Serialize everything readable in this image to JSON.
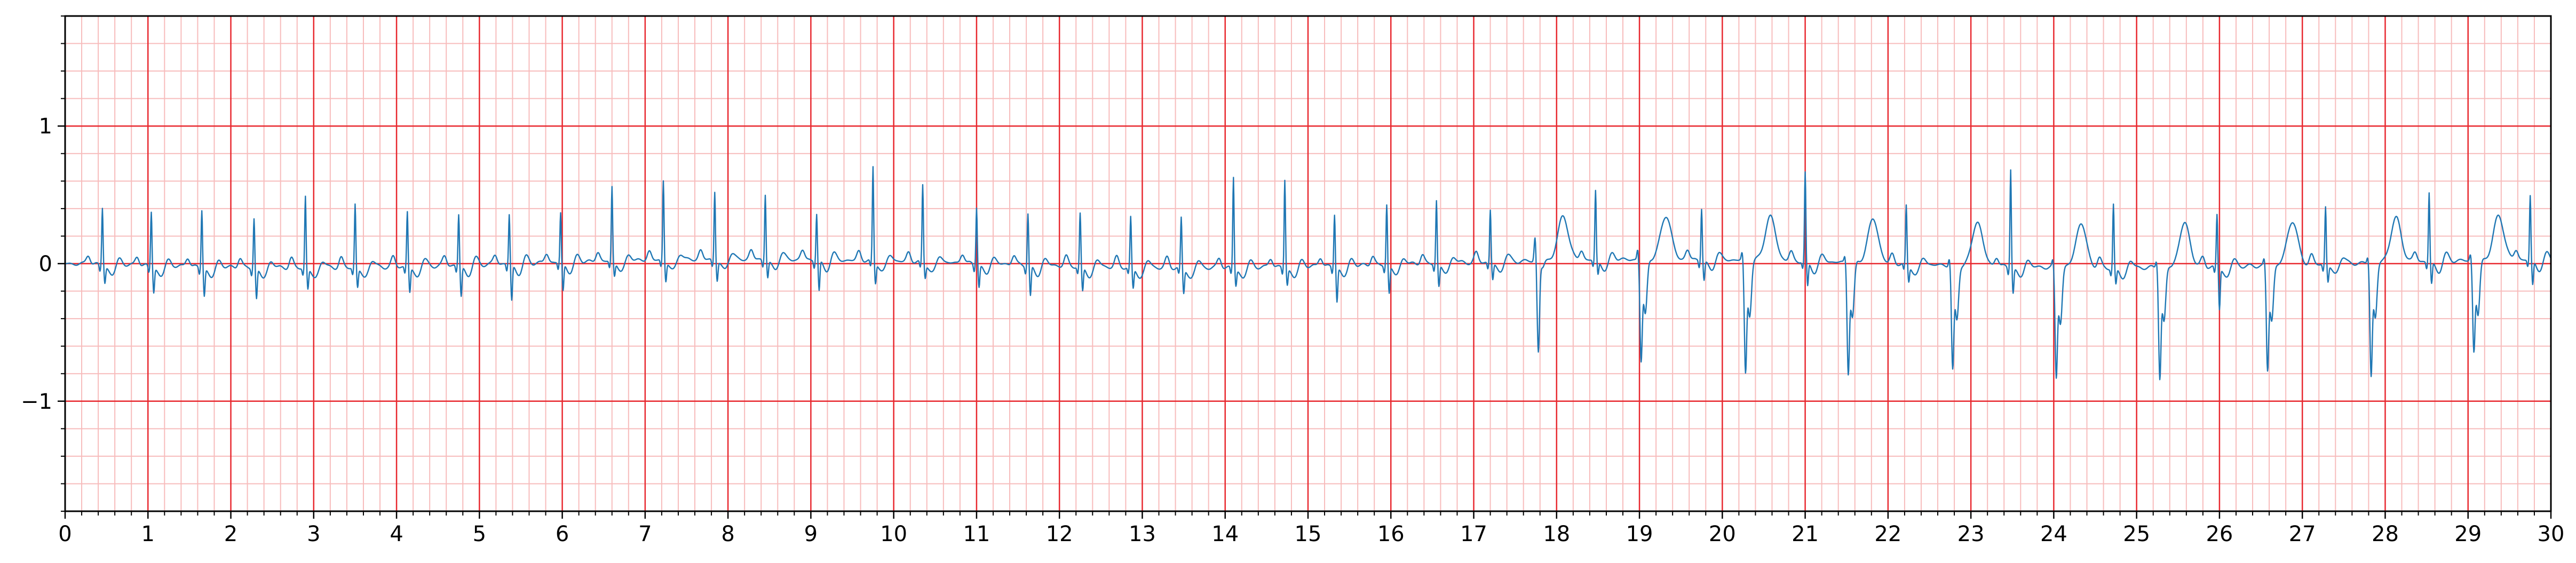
{
  "chart_data": {
    "type": "line",
    "title": "",
    "xlabel": "",
    "ylabel": "",
    "xlim": [
      0,
      30
    ],
    "ylim": [
      -1.8,
      1.8
    ],
    "x_ticks": [
      0,
      1,
      2,
      3,
      4,
      5,
      6,
      7,
      8,
      9,
      10,
      11,
      12,
      13,
      14,
      15,
      16,
      17,
      18,
      19,
      20,
      21,
      22,
      23,
      24,
      25,
      26,
      27,
      28,
      29,
      30
    ],
    "x_tick_labels": [
      "0",
      "1",
      "2",
      "3",
      "4",
      "5",
      "6",
      "7",
      "8",
      "9",
      "10",
      "11",
      "12",
      "13",
      "14",
      "15",
      "16",
      "17",
      "18",
      "19",
      "20",
      "21",
      "22",
      "23",
      "24",
      "25",
      "26",
      "27",
      "28",
      "29",
      "30"
    ],
    "y_ticks": [
      -1,
      0,
      1
    ],
    "y_tick_labels": [
      "−1",
      "0",
      "1"
    ],
    "grid": {
      "major_x_step": 1,
      "major_y_step": 1,
      "minor_x_step": 0.2,
      "minor_y_step": 0.2
    },
    "colors": {
      "trace": "#1f77b4",
      "major_grid": "#e8282f",
      "minor_grid": "#f7bcbc",
      "axes": "#000000"
    },
    "series": [
      {
        "name": "",
        "beats": [
          {
            "t": 0.45,
            "r": 0.42,
            "s": -0.12,
            "q": -0.05
          },
          {
            "t": 1.04,
            "r": 0.4,
            "s": -0.18,
            "q": -0.05
          },
          {
            "t": 1.65,
            "r": 0.42,
            "s": -0.2,
            "q": -0.05
          },
          {
            "t": 2.28,
            "r": 0.36,
            "s": -0.22,
            "q": -0.05
          },
          {
            "t": 2.9,
            "r": 0.52,
            "s": -0.15,
            "q": -0.05
          },
          {
            "t": 3.5,
            "r": 0.46,
            "s": -0.14,
            "q": -0.05
          },
          {
            "t": 4.13,
            "r": 0.4,
            "s": -0.18,
            "q": -0.05
          },
          {
            "t": 4.75,
            "r": 0.37,
            "s": -0.22,
            "q": -0.05
          },
          {
            "t": 5.36,
            "r": 0.36,
            "s": -0.26,
            "q": -0.05
          },
          {
            "t": 5.98,
            "r": 0.36,
            "s": -0.2,
            "q": -0.05
          },
          {
            "t": 6.6,
            "r": 0.54,
            "s": -0.1,
            "q": -0.05
          },
          {
            "t": 7.22,
            "r": 0.58,
            "s": -0.14,
            "q": -0.05
          },
          {
            "t": 7.84,
            "r": 0.5,
            "s": -0.14,
            "q": -0.05
          },
          {
            "t": 8.45,
            "r": 0.48,
            "s": -0.12,
            "q": -0.05
          },
          {
            "t": 9.07,
            "r": 0.34,
            "s": -0.22,
            "q": -0.05
          },
          {
            "t": 9.75,
            "r": 0.68,
            "s": -0.15,
            "q": -0.05
          },
          {
            "t": 10.35,
            "r": 0.56,
            "s": -0.1,
            "q": -0.05
          },
          {
            "t": 11.0,
            "r": 0.42,
            "s": -0.16,
            "q": -0.05
          },
          {
            "t": 11.62,
            "r": 0.38,
            "s": -0.22,
            "q": -0.05
          },
          {
            "t": 12.25,
            "r": 0.38,
            "s": -0.18,
            "q": -0.05
          },
          {
            "t": 12.86,
            "r": 0.36,
            "s": -0.15,
            "q": -0.05
          },
          {
            "t": 13.47,
            "r": 0.36,
            "s": -0.18,
            "q": -0.05
          },
          {
            "t": 14.1,
            "r": 0.66,
            "s": -0.12,
            "q": -0.05
          },
          {
            "t": 14.72,
            "r": 0.64,
            "s": -0.12,
            "q": -0.05
          },
          {
            "t": 15.32,
            "r": 0.38,
            "s": -0.25,
            "q": -0.05
          },
          {
            "t": 15.95,
            "r": 0.44,
            "s": -0.2,
            "q": -0.05
          },
          {
            "t": 16.55,
            "r": 0.46,
            "s": -0.16,
            "q": -0.05
          },
          {
            "t": 17.2,
            "r": 0.38,
            "s": -0.12,
            "q": -0.05
          },
          {
            "t": 17.78,
            "r": 0.18,
            "s": -0.66,
            "q": -0.05,
            "wide": true
          },
          {
            "t": 18.47,
            "r": 0.5,
            "s": -0.1,
            "q": -0.05
          },
          {
            "t": 19.02,
            "r": 0.08,
            "s": -0.72,
            "q": -0.4,
            "wide": true
          },
          {
            "t": 19.75,
            "r": 0.38,
            "s": -0.14,
            "q": -0.05
          },
          {
            "t": 20.28,
            "r": 0.06,
            "s": -0.8,
            "q": -0.4,
            "wide": true
          },
          {
            "t": 21.0,
            "r": 0.64,
            "s": -0.18,
            "q": -0.05
          },
          {
            "t": 21.52,
            "r": 0.05,
            "s": -0.78,
            "q": -0.4,
            "wide": true
          },
          {
            "t": 22.22,
            "r": 0.42,
            "s": -0.12,
            "q": -0.05
          },
          {
            "t": 22.78,
            "r": 0.06,
            "s": -0.74,
            "q": -0.4,
            "wide": true
          },
          {
            "t": 23.48,
            "r": 0.72,
            "s": -0.18,
            "q": -0.05
          },
          {
            "t": 24.03,
            "r": 0.05,
            "s": -0.78,
            "q": -0.4,
            "wide": true
          },
          {
            "t": 24.72,
            "r": 0.46,
            "s": -0.12,
            "q": -0.05
          },
          {
            "t": 25.28,
            "r": 0.06,
            "s": -0.78,
            "q": -0.4,
            "wide": true
          },
          {
            "t": 25.97,
            "r": 0.38,
            "s": -0.3,
            "q": -0.05
          },
          {
            "t": 26.58,
            "r": 0.05,
            "s": -0.74,
            "q": -0.4,
            "wide": true
          },
          {
            "t": 27.28,
            "r": 0.42,
            "s": -0.12,
            "q": -0.05
          },
          {
            "t": 27.83,
            "r": 0.05,
            "s": -0.8,
            "q": -0.4,
            "wide": true
          },
          {
            "t": 28.53,
            "r": 0.5,
            "s": -0.16,
            "q": -0.05
          },
          {
            "t": 29.07,
            "r": 0.05,
            "s": -0.64,
            "q": -0.4,
            "wide": true
          },
          {
            "t": 29.75,
            "r": 0.46,
            "s": -0.18,
            "q": -0.05
          }
        ]
      }
    ]
  }
}
